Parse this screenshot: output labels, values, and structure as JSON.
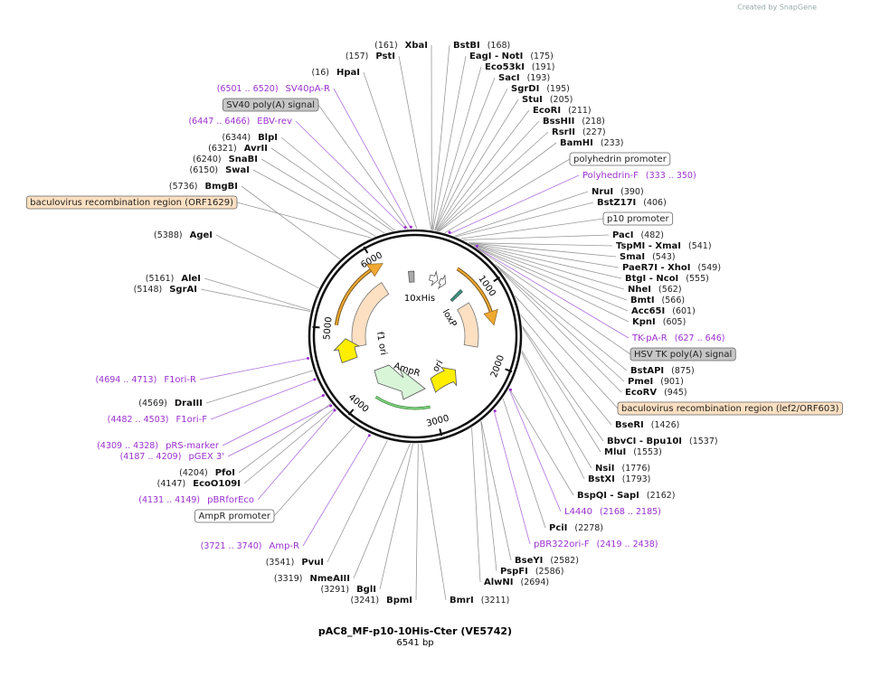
{
  "header": {
    "credit": "Created by SnapGene"
  },
  "map": {
    "title": "pAC8_MF-p10-10His-Cter (VE5742)",
    "length": "6541 bp",
    "ticks": [
      "1000",
      "2000",
      "3000",
      "4000",
      "5000",
      "6000"
    ],
    "features": [
      {
        "label": "10xHis"
      },
      {
        "label": "loxP"
      },
      {
        "label": "f1 ori"
      },
      {
        "label": "AmpR"
      },
      {
        "label": "ori"
      }
    ],
    "annotations": [
      {
        "kind": "enzyme",
        "name": "XbaI",
        "position": "(161)"
      },
      {
        "kind": "enzyme",
        "name": "PstI",
        "position": "(157)"
      },
      {
        "kind": "enzyme",
        "name": "HpaI",
        "position": "(16)"
      },
      {
        "kind": "primer",
        "name": "SV40pA-R",
        "position": "(6501 .. 6520)"
      },
      {
        "kind": "feature",
        "name": "SV40 poly(A) signal",
        "color": "#c6c6c6"
      },
      {
        "kind": "primer",
        "name": "EBV-rev",
        "position": "(6447 .. 6466)"
      },
      {
        "kind": "enzyme",
        "name": "BlpI",
        "position": "(6344)"
      },
      {
        "kind": "enzyme",
        "name": "AvrII",
        "position": "(6321)"
      },
      {
        "kind": "enzyme",
        "name": "SnaBI",
        "position": "(6240)"
      },
      {
        "kind": "enzyme",
        "name": "SwaI",
        "position": "(6150)"
      },
      {
        "kind": "enzyme",
        "name": "BmgBI",
        "position": "(5736)"
      },
      {
        "kind": "feature",
        "name": "baculovirus recombination region (ORF1629)",
        "color": "#fde0c2"
      },
      {
        "kind": "enzyme",
        "name": "AgeI",
        "position": "(5388)"
      },
      {
        "kind": "enzyme",
        "name": "AleI",
        "position": "(5161)"
      },
      {
        "kind": "enzyme",
        "name": "SgrAI",
        "position": "(5148)"
      },
      {
        "kind": "primer",
        "name": "F1ori-R",
        "position": "(4694 .. 4713)"
      },
      {
        "kind": "enzyme",
        "name": "DraIII",
        "position": "(4569)"
      },
      {
        "kind": "primer",
        "name": "F1ori-F",
        "position": "(4482 .. 4503)"
      },
      {
        "kind": "primer",
        "name": "pRS-marker",
        "position": "(4309 .. 4328)"
      },
      {
        "kind": "primer",
        "name": "pGEX 3'",
        "position": "(4187 .. 4209)"
      },
      {
        "kind": "enzyme",
        "name": "PfoI",
        "position": "(4204)"
      },
      {
        "kind": "enzyme",
        "name": "EcoO109I",
        "position": "(4147)"
      },
      {
        "kind": "primer",
        "name": "pBRforEco",
        "position": "(4131 .. 4149)"
      },
      {
        "kind": "feature",
        "name": "AmpR promoter",
        "color": "#ffffff"
      },
      {
        "kind": "primer",
        "name": "Amp-R",
        "position": "(3721 .. 3740)"
      },
      {
        "kind": "enzyme",
        "name": "PvuI",
        "position": "(3541)"
      },
      {
        "kind": "enzyme",
        "name": "NmeAIII",
        "position": "(3319)"
      },
      {
        "kind": "enzyme",
        "name": "BglI",
        "position": "(3291)"
      },
      {
        "kind": "enzyme",
        "name": "BpmI",
        "position": "(3241)"
      },
      {
        "kind": "enzyme",
        "name": "BmrI",
        "position": "(3211)"
      },
      {
        "kind": "enzyme",
        "name": "BstBI",
        "position": "(168)"
      },
      {
        "kind": "enzyme",
        "name": "EagI - NotI",
        "position": "(175)"
      },
      {
        "kind": "enzyme",
        "name": "Eco53kI",
        "position": "(191)"
      },
      {
        "kind": "enzyme",
        "name": "SacI",
        "position": "(193)"
      },
      {
        "kind": "enzyme",
        "name": "SgrDI",
        "position": "(195)"
      },
      {
        "kind": "enzyme",
        "name": "StuI",
        "position": "(205)"
      },
      {
        "kind": "enzyme",
        "name": "EcoRI",
        "position": "(211)"
      },
      {
        "kind": "enzyme",
        "name": "BssHII",
        "position": "(218)"
      },
      {
        "kind": "enzyme",
        "name": "RsrII",
        "position": "(227)"
      },
      {
        "kind": "enzyme",
        "name": "BamHI",
        "position": "(233)"
      },
      {
        "kind": "feature",
        "name": "polyhedrin promoter",
        "color": "#ffffff"
      },
      {
        "kind": "primer",
        "name": "Polyhedrin-F",
        "position": "(333 .. 350)"
      },
      {
        "kind": "enzyme",
        "name": "NruI",
        "position": "(390)"
      },
      {
        "kind": "enzyme",
        "name": "BstZ17I",
        "position": "(406)"
      },
      {
        "kind": "feature",
        "name": "p10 promoter",
        "color": "#ffffff"
      },
      {
        "kind": "enzyme",
        "name": "PacI",
        "position": "(482)"
      },
      {
        "kind": "enzyme",
        "name": "TspMI - XmaI",
        "position": "(541)"
      },
      {
        "kind": "enzyme",
        "name": "SmaI",
        "position": "(543)"
      },
      {
        "kind": "enzyme",
        "name": "PaeR7I - XhoI",
        "position": "(549)"
      },
      {
        "kind": "enzyme",
        "name": "BtgI - NcoI",
        "position": "(555)"
      },
      {
        "kind": "enzyme",
        "name": "NheI",
        "position": "(562)"
      },
      {
        "kind": "enzyme",
        "name": "BmtI",
        "position": "(566)"
      },
      {
        "kind": "enzyme",
        "name": "Acc65I",
        "position": "(601)"
      },
      {
        "kind": "enzyme",
        "name": "KpnI",
        "position": "(605)"
      },
      {
        "kind": "primer",
        "name": "TK-pA-R",
        "position": "(627 .. 646)"
      },
      {
        "kind": "feature",
        "name": "HSV TK poly(A) signal",
        "color": "#c6c6c6"
      },
      {
        "kind": "enzyme",
        "name": "BstAPI",
        "position": "(875)"
      },
      {
        "kind": "enzyme",
        "name": "PmeI",
        "position": "(901)"
      },
      {
        "kind": "enzyme",
        "name": "EcoRV",
        "position": "(945)"
      },
      {
        "kind": "feature",
        "name": "baculovirus recombination region (lef2/ORF603)",
        "color": "#fde0c2"
      },
      {
        "kind": "enzyme",
        "name": "BseRI",
        "position": "(1426)"
      },
      {
        "kind": "enzyme",
        "name": "BbvCI - Bpu10I",
        "position": "(1537)"
      },
      {
        "kind": "enzyme",
        "name": "MluI",
        "position": "(1553)"
      },
      {
        "kind": "enzyme",
        "name": "NsiI",
        "position": "(1776)"
      },
      {
        "kind": "enzyme",
        "name": "BstXI",
        "position": "(1793)"
      },
      {
        "kind": "enzyme",
        "name": "BspQI - SapI",
        "position": "(2162)"
      },
      {
        "kind": "primer",
        "name": "L4440",
        "position": "(2168 .. 2185)"
      },
      {
        "kind": "enzyme",
        "name": "PciI",
        "position": "(2278)"
      },
      {
        "kind": "primer",
        "name": "pBR322ori-F",
        "position": "(2419 .. 2438)"
      },
      {
        "kind": "enzyme",
        "name": "BseYI",
        "position": "(2582)"
      },
      {
        "kind": "enzyme",
        "name": "PspFI",
        "position": "(2586)"
      },
      {
        "kind": "enzyme",
        "name": "AlwNI",
        "position": "(2694)"
      }
    ]
  }
}
